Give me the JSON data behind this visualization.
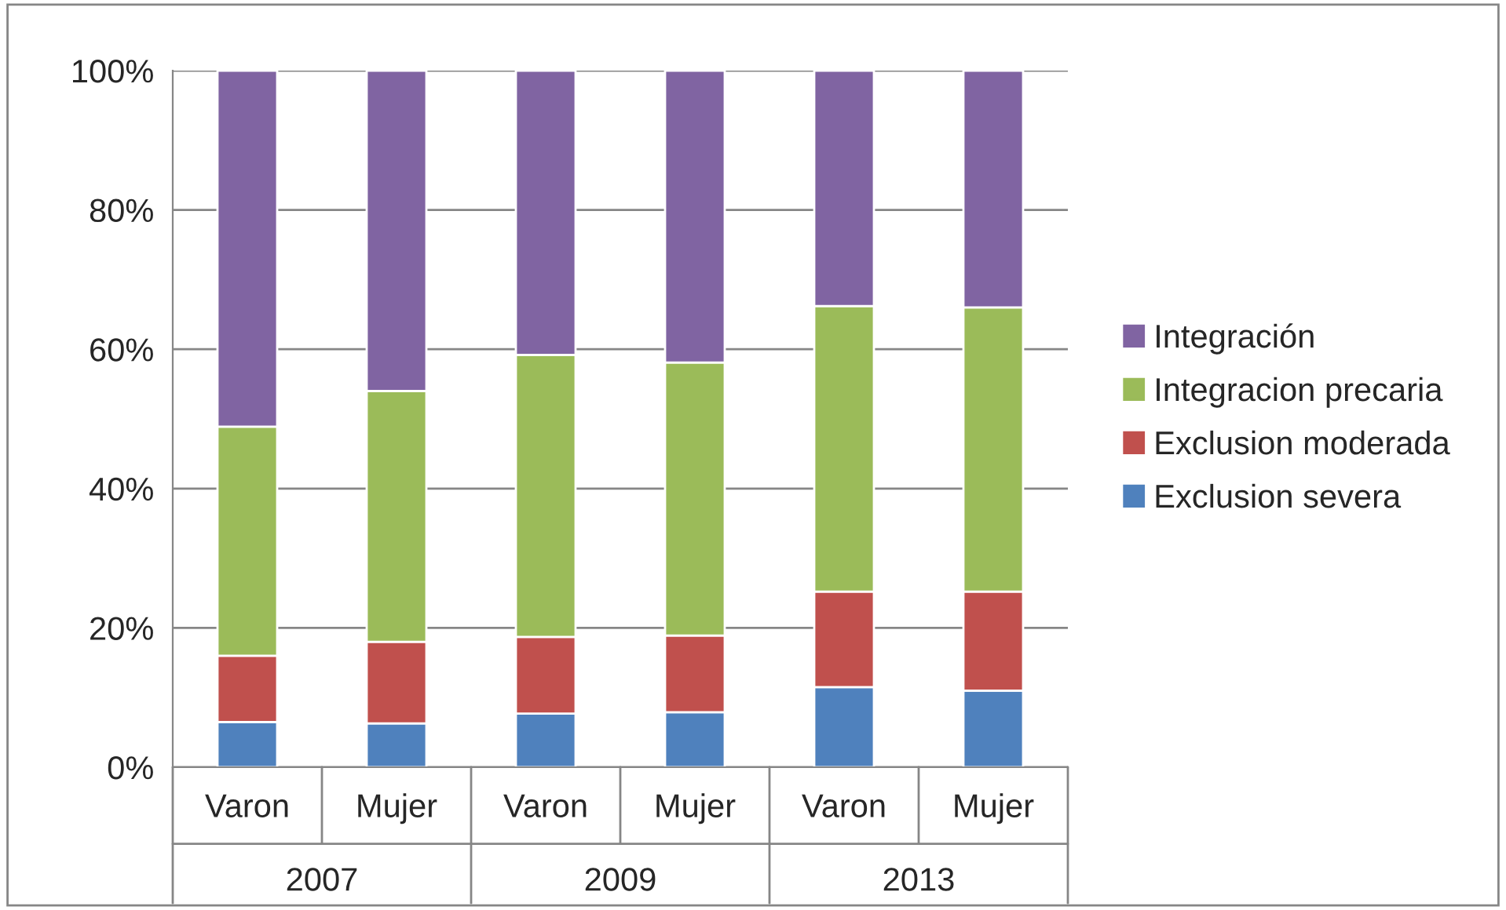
{
  "chart_data": {
    "type": "bar",
    "stacked": true,
    "categories": [
      "Varon",
      "Mujer",
      "Varon",
      "Mujer",
      "Varon",
      "Mujer"
    ],
    "annotations": [
      "2007",
      "2009",
      "2013"
    ],
    "series": [
      {
        "name": "Exclusion severa",
        "color": "#4f81bd",
        "values": [
          6.5,
          6.3,
          7.7,
          7.9,
          11.5,
          11
        ]
      },
      {
        "name": "Exclusion moderada",
        "color": "#c0504d",
        "values": [
          9.5,
          11.7,
          11,
          11,
          13.7,
          14.2
        ]
      },
      {
        "name": "Integracion precaria",
        "color": "#9bbb59",
        "values": [
          32.9,
          36,
          40.5,
          39.2,
          41,
          40.8
        ]
      },
      {
        "name": "Integración",
        "color": "#8064a2",
        "values": [
          51.1,
          46,
          40.8,
          41.9,
          33.8,
          34
        ]
      }
    ],
    "ylim": [
      0,
      100
    ],
    "yticks": [
      {
        "value": 0,
        "label": "0%"
      },
      {
        "value": 20,
        "label": "20%"
      },
      {
        "value": 40,
        "label": "40%"
      },
      {
        "value": 60,
        "label": "60%"
      },
      {
        "value": 80,
        "label": "80%"
      },
      {
        "value": 100,
        "label": "100%"
      }
    ],
    "grid": "y",
    "legend": "right"
  }
}
